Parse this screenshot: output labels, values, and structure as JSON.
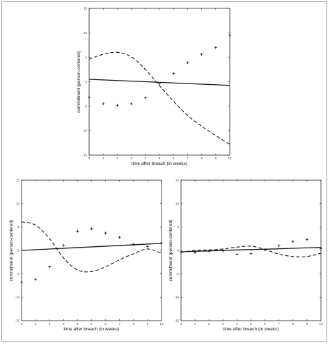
{
  "chart_data": [
    {
      "type": "line",
      "xlabel": "time after breach (in weeks)",
      "ylabel": "commitment (person-centered)",
      "xlim": [
        0,
        10
      ],
      "ylim": [
        -15,
        15
      ],
      "xticks": [
        0,
        1,
        2,
        3,
        4,
        5,
        6,
        7,
        8,
        9,
        10
      ],
      "yticks": [
        15,
        10,
        5,
        0,
        -5,
        -10,
        -15
      ],
      "grid": false,
      "series": [
        {
          "kind": "markers",
          "marker": "+",
          "x": [
            0,
            1,
            2,
            3,
            4,
            5,
            6,
            7,
            8,
            9,
            10
          ],
          "y": [
            -3.2,
            -4.5,
            -4.8,
            -4.5,
            -3.3,
            -0.4,
            1.7,
            3.9,
            5.6,
            7.0,
            9.5
          ]
        },
        {
          "kind": "solid-line",
          "x": [
            0,
            2,
            4,
            6,
            8,
            10
          ],
          "y": [
            0.5,
            0.25,
            0.0,
            -0.25,
            -0.5,
            -0.75
          ]
        },
        {
          "kind": "dashed-line",
          "x": [
            0,
            1,
            2,
            3,
            4,
            5,
            6,
            7,
            8,
            9,
            10
          ],
          "y": [
            4.6,
            5.6,
            6.0,
            5.1,
            2.5,
            -0.8,
            -4.0,
            -6.9,
            -9.1,
            -11.0,
            -12.8
          ]
        }
      ]
    },
    {
      "type": "line",
      "xlabel": "time after breach (in weeks)",
      "ylabel": "commitment (person-centered)",
      "xlim": [
        0,
        10
      ],
      "ylim": [
        -15,
        15
      ],
      "xticks": [
        0,
        1,
        2,
        3,
        4,
        5,
        6,
        7,
        8,
        9,
        10
      ],
      "yticks": [
        15,
        10,
        5,
        0,
        -5,
        -10,
        -15
      ],
      "grid": false,
      "series": [
        {
          "kind": "markers",
          "marker": "+",
          "x": [
            0,
            1,
            2,
            3,
            4,
            5,
            6,
            7,
            8,
            9,
            10
          ],
          "y": [
            -6.8,
            -6.2,
            -3.5,
            1.1,
            4.1,
            4.6,
            3.7,
            2.8,
            1.3,
            0.8,
            1.6
          ]
        },
        {
          "kind": "solid-line",
          "x": [
            0,
            2,
            4,
            6,
            8,
            10
          ],
          "y": [
            0.0,
            0.3,
            0.6,
            0.9,
            1.2,
            1.5
          ]
        },
        {
          "kind": "dashed-line",
          "x": [
            0,
            1,
            2,
            3,
            4,
            5,
            6,
            7,
            8,
            9,
            10
          ],
          "y": [
            6.1,
            5.4,
            2.5,
            -1.6,
            -4.2,
            -4.5,
            -3.5,
            -2.0,
            -0.7,
            0.3,
            -0.6
          ]
        }
      ]
    },
    {
      "type": "line",
      "xlabel": "time after breach (in weeks)",
      "ylabel": "commitment (person-centered)",
      "xlim": [
        0,
        10
      ],
      "ylim": [
        -15,
        15
      ],
      "xticks": [
        0,
        1,
        2,
        3,
        4,
        5,
        6,
        7,
        8,
        9,
        10
      ],
      "yticks": [
        15,
        10,
        5,
        0,
        -5,
        -10,
        -15
      ],
      "grid": false,
      "series": [
        {
          "kind": "markers",
          "marker": "+",
          "x": [
            0,
            1,
            2,
            3,
            4,
            5,
            6,
            7,
            8,
            9,
            10
          ],
          "y": [
            -0.3,
            -0.5,
            -0.2,
            -0.1,
            -0.8,
            -0.7,
            0.1,
            1.0,
            1.9,
            2.3,
            0.4
          ]
        },
        {
          "kind": "solid-line",
          "x": [
            0,
            2,
            4,
            6,
            8,
            10
          ],
          "y": [
            -0.3,
            -0.1,
            0.1,
            0.25,
            0.45,
            0.65
          ]
        },
        {
          "kind": "dashed-line",
          "x": [
            0,
            1,
            2,
            3,
            4,
            5,
            6,
            7,
            8,
            9,
            10
          ],
          "y": [
            -0.4,
            0.0,
            0.1,
            0.3,
            0.7,
            0.9,
            0.2,
            -0.8,
            -1.3,
            -1.3,
            -0.6
          ]
        }
      ]
    }
  ]
}
